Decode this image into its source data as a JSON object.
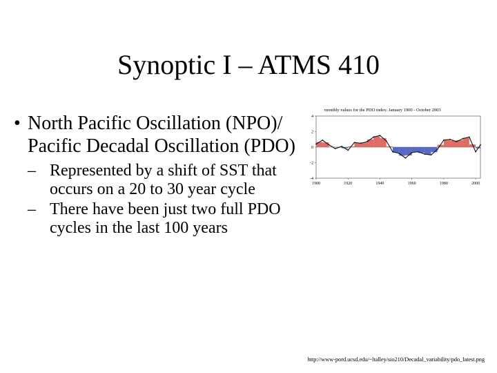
{
  "slide": {
    "title": "Synoptic I – ATMS 410",
    "bullet": {
      "marker": "•",
      "text": "North Pacific Oscillation (NPO)/ Pacific Decadal Oscillation (PDO)"
    },
    "sub_bullets": [
      {
        "marker": "–",
        "text": "Represented by a shift of SST that occurs on a 20 to 30 year cycle"
      },
      {
        "marker": "–",
        "text": "There have been just two full PDO cycles in the last 100 years"
      }
    ],
    "source_url": "http://www-pord.ucsd.edu/~ltalley/sio210/Decadal_variability/pdo_latest.png"
  },
  "chart_data": {
    "type": "area",
    "title": "monthly values for the PDO index: January 1900 - October 2003",
    "x_range": [
      1900,
      2003
    ],
    "ylim": [
      -4,
      4
    ],
    "x_ticks": [
      1900,
      1920,
      1940,
      1960,
      1980,
      2000
    ],
    "x_tick_labels": [
      "1900",
      "1920",
      "1940",
      "1960",
      "1980",
      "2000"
    ],
    "y_ticks": [
      -4,
      -2,
      0,
      2,
      4
    ],
    "y_tick_labels": [
      "-4",
      "-2",
      "0",
      "2",
      "4"
    ],
    "positive_color": "#d9534a",
    "negative_color": "#3b4fb8",
    "line_color": "#111111",
    "x": [
      1900,
      1904,
      1908,
      1912,
      1916,
      1920,
      1924,
      1928,
      1932,
      1936,
      1940,
      1944,
      1948,
      1952,
      1956,
      1960,
      1964,
      1968,
      1972,
      1976,
      1980,
      1984,
      1988,
      1992,
      1996,
      2000,
      2003
    ],
    "y": [
      0.4,
      0.9,
      0.3,
      -0.2,
      0.1,
      -0.4,
      0.6,
      0.5,
      0.7,
      1.3,
      1.5,
      0.8,
      -0.6,
      -0.8,
      -1.4,
      -0.7,
      -0.6,
      -0.9,
      -1.0,
      -0.3,
      0.9,
      1.0,
      0.7,
      1.1,
      1.3,
      -0.6,
      0.3
    ]
  }
}
